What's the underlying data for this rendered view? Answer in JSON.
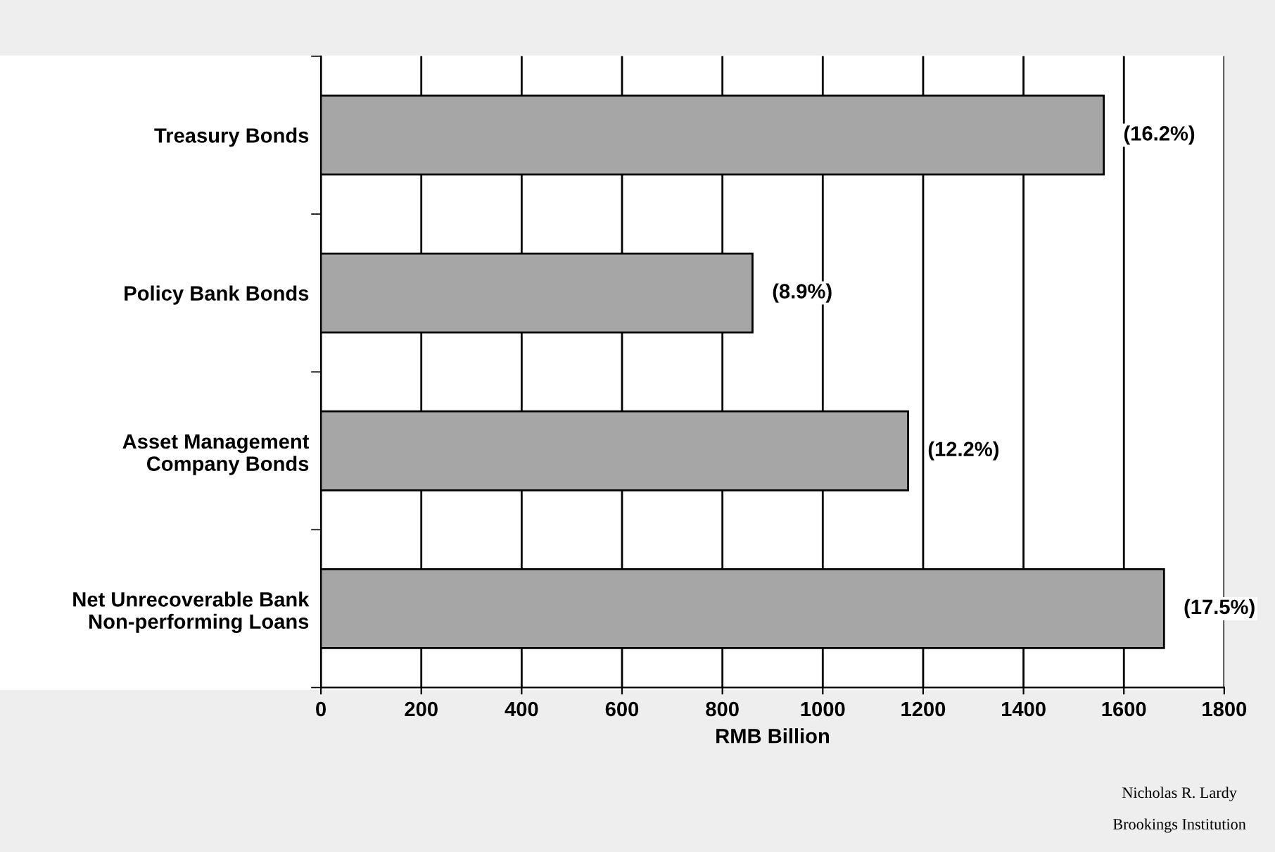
{
  "chart_data": {
    "type": "bar",
    "orientation": "horizontal",
    "xlabel": "RMB Billion",
    "categories": [
      "Treasury Bonds",
      "Policy Bank Bonds",
      "Asset Management\nCompany Bonds",
      "Net Unrecoverable Bank\nNon-performing Loans"
    ],
    "values": [
      1560,
      860,
      1170,
      1680
    ],
    "color": "#a6a6a6",
    "xlim": [
      0,
      1800
    ],
    "xticks": [
      0,
      200,
      400,
      600,
      800,
      1000,
      1200,
      1400,
      1600,
      1800
    ],
    "grid": "x",
    "legend": false,
    "annotations": [
      "(16.2%)",
      "(8.9%)",
      "(12.2%)",
      "(17.5%)",
      "Nicholas R. Lardy",
      "Brookings Institution"
    ]
  }
}
